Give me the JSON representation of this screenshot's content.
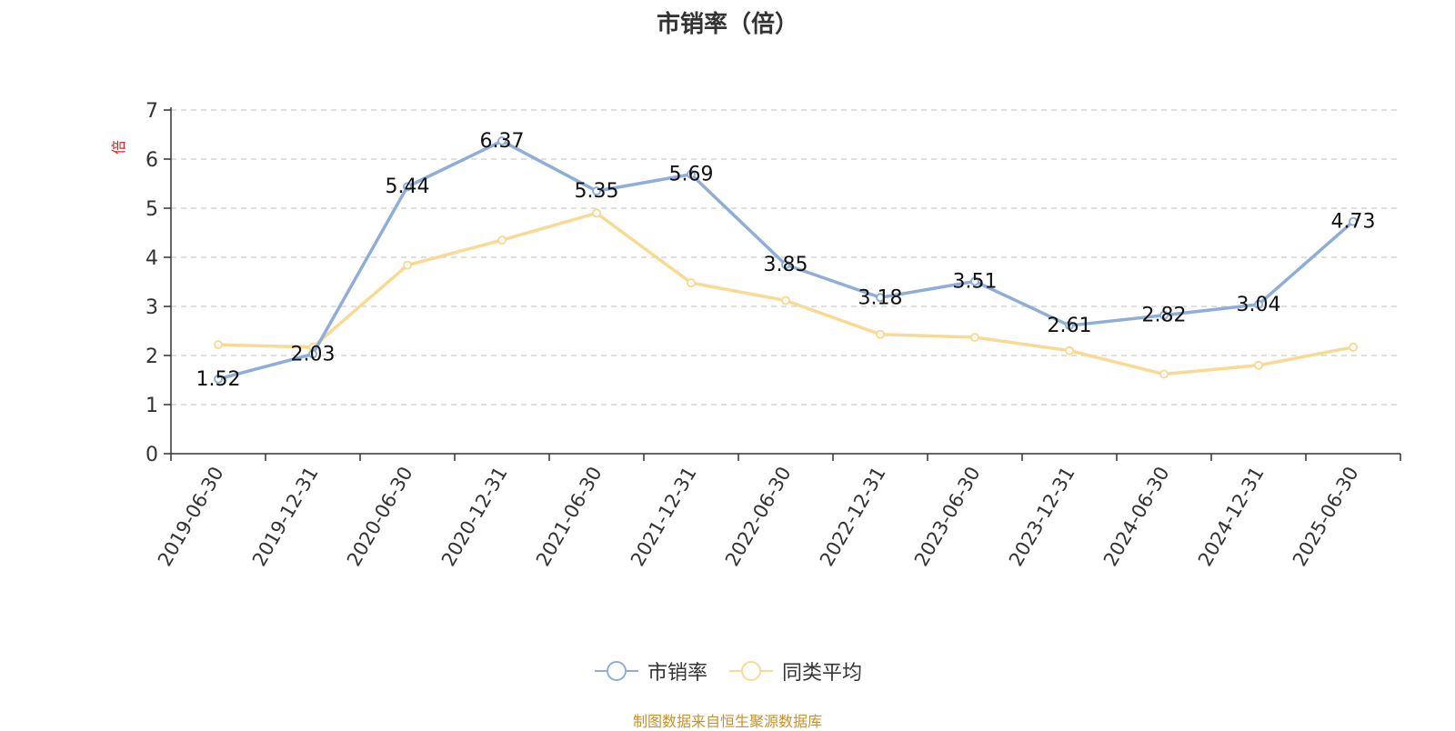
{
  "chart_data": {
    "type": "line",
    "title": "市销率（倍）",
    "ylabel": "倍",
    "ylim": [
      0,
      7
    ],
    "yticks": [
      0,
      1,
      2,
      3,
      4,
      5,
      6,
      7
    ],
    "grid": true,
    "legend_position": "bottom-center",
    "x": [
      "2019-06-30",
      "2019-12-31",
      "2020-06-30",
      "2020-12-31",
      "2021-06-30",
      "2021-12-31",
      "2022-06-30",
      "2022-12-31",
      "2023-06-30",
      "2023-12-31",
      "2024-06-30",
      "2024-12-31",
      "2025-06-30"
    ],
    "series": [
      {
        "name": "市销率",
        "color": "#8eaed8",
        "values": [
          1.52,
          2.03,
          5.44,
          6.37,
          5.35,
          5.69,
          3.85,
          3.18,
          3.51,
          2.61,
          2.82,
          3.04,
          4.73
        ],
        "labels": [
          "1.52",
          "2.03",
          "5.44",
          "6.37",
          "5.35",
          "5.69",
          "3.85",
          "3.18",
          "3.51",
          "2.61",
          "2.82",
          "3.04",
          "4.73"
        ]
      },
      {
        "name": "同类平均",
        "color": "#fad994",
        "values": [
          2.22,
          2.17,
          3.84,
          4.35,
          4.9,
          3.48,
          3.12,
          2.43,
          2.37,
          2.1,
          1.62,
          1.8,
          2.17
        ]
      }
    ]
  },
  "footer": {
    "source": "制图数据来自恒生聚源数据库"
  }
}
